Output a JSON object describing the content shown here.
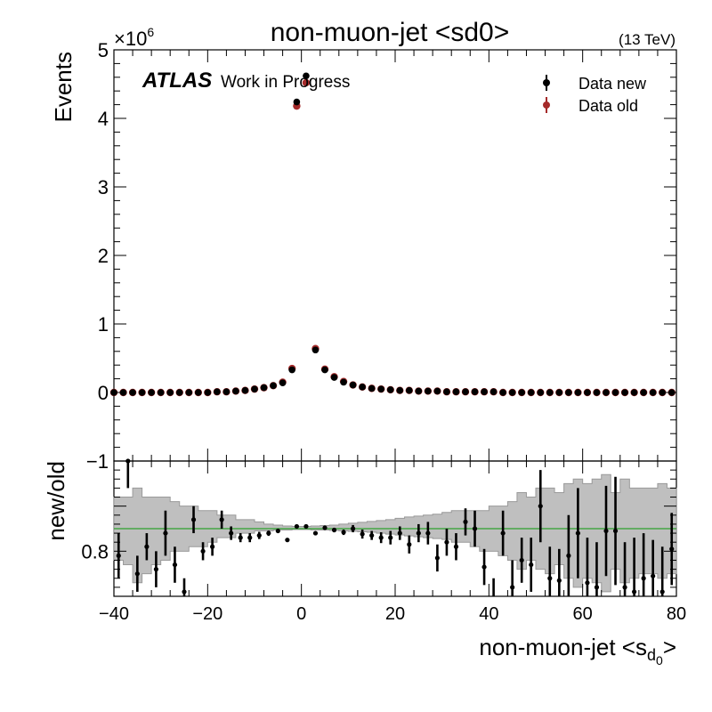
{
  "title": "non-muon-jet <sd0>",
  "energy_label": "(13 TeV)",
  "atlas_label": "ATLAS",
  "atlas_sublabel": "Work in Progress",
  "exponent_label": "×10",
  "exponent_power": "6",
  "colors": {
    "data_new": "#000000",
    "data_old": "#a52a2a",
    "band": "#bfbfbf",
    "ref_line": "#2ca02c"
  },
  "chart_data": [
    {
      "type": "scatter",
      "panel": "main",
      "ylabel": "Events",
      "xlim": [
        -40,
        80
      ],
      "ylim": [
        -1,
        5
      ],
      "yscale": "x1e6",
      "xticks": [
        "−40",
        "−20",
        "0",
        "20",
        "40",
        "60",
        "80"
      ],
      "yticks": [
        "−1",
        "0",
        "1",
        "2",
        "3",
        "4",
        "5"
      ],
      "legend": {
        "placement": "top-right"
      },
      "series": [
        {
          "name": "Data new",
          "points": [
            [
              -40,
              0.0
            ],
            [
              -38,
              0.0
            ],
            [
              -36,
              0.0
            ],
            [
              -34,
              0.0
            ],
            [
              -32,
              0.0
            ],
            [
              -30,
              0.0
            ],
            [
              -28,
              0.0
            ],
            [
              -26,
              0.0
            ],
            [
              -24,
              0.0
            ],
            [
              -22,
              0.0
            ],
            [
              -20,
              0.0
            ],
            [
              -18,
              0.01
            ],
            [
              -16,
              0.01
            ],
            [
              -14,
              0.02
            ],
            [
              -12,
              0.03
            ],
            [
              -10,
              0.05
            ],
            [
              -8,
              0.07
            ],
            [
              -6,
              0.1
            ],
            [
              -4,
              0.14
            ],
            [
              -2,
              0.33
            ],
            [
              -1,
              4.24
            ],
            [
              1,
              4.62
            ],
            [
              3,
              0.62
            ],
            [
              5,
              0.33
            ],
            [
              7,
              0.22
            ],
            [
              9,
              0.15
            ],
            [
              11,
              0.11
            ],
            [
              13,
              0.08
            ],
            [
              15,
              0.06
            ],
            [
              17,
              0.05
            ],
            [
              19,
              0.04
            ],
            [
              21,
              0.03
            ],
            [
              23,
              0.03
            ],
            [
              25,
              0.02
            ],
            [
              27,
              0.02
            ],
            [
              29,
              0.02
            ],
            [
              31,
              0.01
            ],
            [
              33,
              0.01
            ],
            [
              35,
              0.01
            ],
            [
              37,
              0.01
            ],
            [
              39,
              0.01
            ],
            [
              41,
              0.01
            ],
            [
              43,
              0.0
            ],
            [
              45,
              0.0
            ],
            [
              47,
              0.0
            ],
            [
              49,
              0.0
            ],
            [
              51,
              0.0
            ],
            [
              53,
              0.0
            ],
            [
              55,
              0.0
            ],
            [
              57,
              0.0
            ],
            [
              59,
              0.0
            ],
            [
              61,
              0.0
            ],
            [
              63,
              0.0
            ],
            [
              65,
              0.0
            ],
            [
              67,
              0.0
            ],
            [
              69,
              0.0
            ],
            [
              71,
              0.0
            ],
            [
              73,
              0.0
            ],
            [
              75,
              0.0
            ],
            [
              77,
              0.0
            ],
            [
              79,
              0.0
            ]
          ]
        },
        {
          "name": "Data old",
          "points": [
            [
              -40,
              0.0
            ],
            [
              -38,
              0.0
            ],
            [
              -36,
              0.0
            ],
            [
              -34,
              0.0
            ],
            [
              -32,
              0.0
            ],
            [
              -30,
              0.0
            ],
            [
              -28,
              0.0
            ],
            [
              -26,
              0.0
            ],
            [
              -24,
              0.0
            ],
            [
              -22,
              0.0
            ],
            [
              -20,
              0.0
            ],
            [
              -18,
              0.01
            ],
            [
              -16,
              0.01
            ],
            [
              -14,
              0.02
            ],
            [
              -12,
              0.03
            ],
            [
              -10,
              0.05
            ],
            [
              -8,
              0.07
            ],
            [
              -6,
              0.1
            ],
            [
              -4,
              0.15
            ],
            [
              -2,
              0.35
            ],
            [
              -1,
              4.18
            ],
            [
              1,
              4.52
            ],
            [
              3,
              0.64
            ],
            [
              5,
              0.34
            ],
            [
              7,
              0.23
            ],
            [
              9,
              0.16
            ],
            [
              11,
              0.11
            ],
            [
              13,
              0.08
            ],
            [
              15,
              0.06
            ],
            [
              17,
              0.05
            ],
            [
              19,
              0.04
            ],
            [
              21,
              0.03
            ],
            [
              23,
              0.03
            ],
            [
              25,
              0.02
            ],
            [
              27,
              0.02
            ],
            [
              29,
              0.02
            ],
            [
              31,
              0.01
            ],
            [
              33,
              0.01
            ],
            [
              35,
              0.01
            ],
            [
              37,
              0.01
            ],
            [
              39,
              0.01
            ],
            [
              41,
              0.01
            ],
            [
              43,
              0.0
            ],
            [
              45,
              0.0
            ],
            [
              47,
              0.0
            ],
            [
              49,
              0.0
            ],
            [
              51,
              0.0
            ],
            [
              53,
              0.0
            ],
            [
              55,
              0.0
            ],
            [
              57,
              0.0
            ],
            [
              59,
              0.0
            ],
            [
              61,
              0.0
            ],
            [
              63,
              0.0
            ],
            [
              65,
              0.0
            ],
            [
              67,
              0.0
            ],
            [
              69,
              0.0
            ],
            [
              71,
              0.0
            ],
            [
              73,
              0.0
            ],
            [
              75,
              0.0
            ],
            [
              77,
              0.0
            ],
            [
              79,
              0.0
            ]
          ]
        }
      ]
    },
    {
      "type": "scatter",
      "panel": "ratio",
      "ylabel": "new/old",
      "xlabel_main": "non-muon-jet <s",
      "xlabel_sub": "d",
      "xlabel_subsub": "0",
      "xlabel_end": ">",
      "xlim": [
        -40,
        80
      ],
      "ylim": [
        0.7,
        1.0
      ],
      "yticks": [
        "0.8"
      ],
      "reference_line": 0.85,
      "band": [
        [
          -40,
          0.78,
          0.92
        ],
        [
          -38,
          0.77,
          0.92
        ],
        [
          -36,
          0.73,
          0.94
        ],
        [
          -34,
          0.75,
          0.92
        ],
        [
          -32,
          0.77,
          0.92
        ],
        [
          -30,
          0.78,
          0.92
        ],
        [
          -28,
          0.8,
          0.91
        ],
        [
          -26,
          0.8,
          0.9
        ],
        [
          -24,
          0.81,
          0.9
        ],
        [
          -22,
          0.81,
          0.89
        ],
        [
          -20,
          0.82,
          0.89
        ],
        [
          -18,
          0.83,
          0.88
        ],
        [
          -16,
          0.83,
          0.88
        ],
        [
          -14,
          0.84,
          0.87
        ],
        [
          -12,
          0.84,
          0.87
        ],
        [
          -10,
          0.845,
          0.865
        ],
        [
          -8,
          0.845,
          0.86
        ],
        [
          -6,
          0.847,
          0.858
        ],
        [
          -4,
          0.847,
          0.856
        ],
        [
          -2,
          0.848,
          0.855
        ],
        [
          0,
          0.848,
          0.855
        ],
        [
          2,
          0.847,
          0.856
        ],
        [
          4,
          0.847,
          0.857
        ],
        [
          6,
          0.846,
          0.858
        ],
        [
          8,
          0.845,
          0.86
        ],
        [
          10,
          0.844,
          0.862
        ],
        [
          12,
          0.843,
          0.864
        ],
        [
          14,
          0.842,
          0.866
        ],
        [
          16,
          0.84,
          0.868
        ],
        [
          18,
          0.838,
          0.87
        ],
        [
          20,
          0.836,
          0.873
        ],
        [
          22,
          0.834,
          0.876
        ],
        [
          24,
          0.832,
          0.878
        ],
        [
          26,
          0.83,
          0.88
        ],
        [
          28,
          0.828,
          0.882
        ],
        [
          30,
          0.826,
          0.886
        ],
        [
          32,
          0.82,
          0.89
        ],
        [
          34,
          0.82,
          0.89
        ],
        [
          36,
          0.81,
          0.89
        ],
        [
          38,
          0.8,
          0.89
        ],
        [
          40,
          0.8,
          0.9
        ],
        [
          42,
          0.79,
          0.9
        ],
        [
          44,
          0.78,
          0.91
        ],
        [
          46,
          0.76,
          0.93
        ],
        [
          48,
          0.78,
          0.92
        ],
        [
          50,
          0.76,
          0.94
        ],
        [
          52,
          0.75,
          0.94
        ],
        [
          54,
          0.77,
          0.93
        ],
        [
          56,
          0.74,
          0.95
        ],
        [
          58,
          0.72,
          0.96
        ],
        [
          60,
          0.74,
          0.95
        ],
        [
          62,
          0.73,
          0.96
        ],
        [
          64,
          0.71,
          0.97
        ],
        [
          66,
          0.76,
          0.93
        ],
        [
          68,
          0.73,
          0.96
        ],
        [
          70,
          0.74,
          0.94
        ],
        [
          72,
          0.75,
          0.94
        ],
        [
          74,
          0.75,
          0.94
        ],
        [
          76,
          0.74,
          0.95
        ],
        [
          78,
          0.75,
          0.94
        ]
      ],
      "points": [
        [
          -39,
          0.79,
          0.05
        ],
        [
          -37,
          1.0,
          0.06
        ],
        [
          -35,
          0.75,
          0.04
        ],
        [
          -33,
          0.81,
          0.03
        ],
        [
          -31,
          0.76,
          0.04
        ],
        [
          -29,
          0.84,
          0.05
        ],
        [
          -27,
          0.77,
          0.04
        ],
        [
          -25,
          0.71,
          0.03
        ],
        [
          -23,
          0.87,
          0.03
        ],
        [
          -21,
          0.8,
          0.02
        ],
        [
          -19,
          0.81,
          0.02
        ],
        [
          -17,
          0.87,
          0.02
        ],
        [
          -15,
          0.84,
          0.015
        ],
        [
          -13,
          0.83,
          0.01
        ],
        [
          -11,
          0.83,
          0.01
        ],
        [
          -9,
          0.835,
          0.008
        ],
        [
          -7,
          0.84,
          0.006
        ],
        [
          -5,
          0.845,
          0.004
        ],
        [
          -3,
          0.825,
          0.003
        ],
        [
          -1,
          0.855,
          0.002
        ],
        [
          1,
          0.855,
          0.002
        ],
        [
          3,
          0.84,
          0.003
        ],
        [
          5,
          0.852,
          0.004
        ],
        [
          7,
          0.847,
          0.005
        ],
        [
          9,
          0.842,
          0.006
        ],
        [
          11,
          0.85,
          0.008
        ],
        [
          13,
          0.838,
          0.01
        ],
        [
          15,
          0.835,
          0.01
        ],
        [
          17,
          0.83,
          0.012
        ],
        [
          19,
          0.83,
          0.015
        ],
        [
          21,
          0.84,
          0.015
        ],
        [
          23,
          0.815,
          0.02
        ],
        [
          25,
          0.84,
          0.02
        ],
        [
          27,
          0.84,
          0.025
        ],
        [
          29,
          0.785,
          0.03
        ],
        [
          31,
          0.82,
          0.03
        ],
        [
          33,
          0.81,
          0.03
        ],
        [
          35,
          0.865,
          0.03
        ],
        [
          37,
          0.85,
          0.04
        ],
        [
          39,
          0.765,
          0.04
        ],
        [
          41,
          0.69,
          0.05
        ],
        [
          43,
          0.84,
          0.05
        ],
        [
          45,
          0.72,
          0.06
        ],
        [
          47,
          0.78,
          0.05
        ],
        [
          49,
          0.77,
          0.06
        ],
        [
          51,
          0.9,
          0.08
        ],
        [
          53,
          0.74,
          0.07
        ],
        [
          55,
          0.735,
          0.07
        ],
        [
          57,
          0.79,
          0.09
        ],
        [
          59,
          0.84,
          0.1
        ],
        [
          61,
          0.73,
          0.1
        ],
        [
          63,
          0.72,
          0.1
        ],
        [
          65,
          0.845,
          0.1
        ],
        [
          67,
          0.845,
          0.12
        ],
        [
          69,
          0.72,
          0.1
        ],
        [
          71,
          0.71,
          0.12
        ],
        [
          73,
          0.74,
          0.1
        ],
        [
          75,
          0.745,
          0.08
        ],
        [
          77,
          0.71,
          0.1
        ],
        [
          79,
          0.805,
          0.08
        ]
      ]
    }
  ]
}
